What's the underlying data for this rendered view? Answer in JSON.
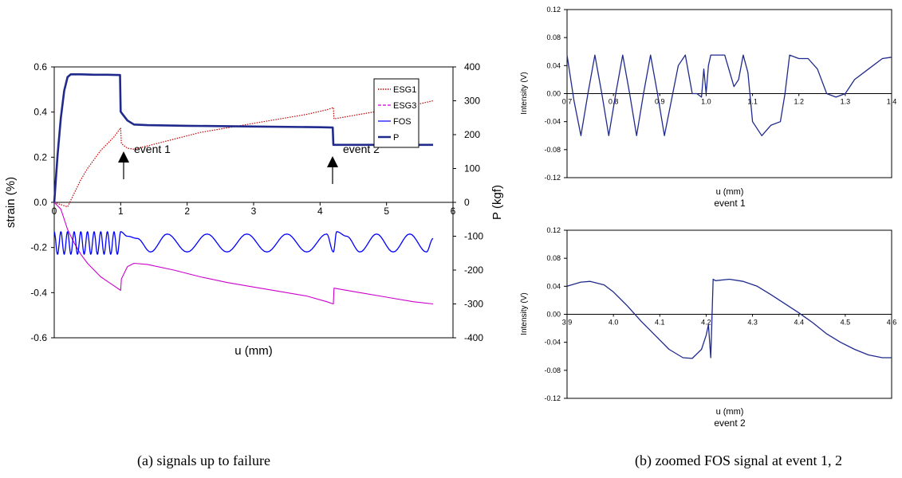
{
  "figure": {
    "caption_a": "(a) signals up to failure",
    "caption_b": "(b) zoomed FOS signal at event 1, 2"
  },
  "colors": {
    "esg1": "#c00000",
    "esg3": "#cc00cc",
    "fos": "#0000ff",
    "p": "#1f2a8c",
    "zoom_line": "#1f2a8c"
  },
  "chart_data": [
    {
      "id": "main",
      "type": "line",
      "xlabel": "u (mm)",
      "ylabel": "strain (%)",
      "y2label": "P (kgf)",
      "xlim": [
        0,
        6
      ],
      "ylim": [
        -0.6,
        0.6
      ],
      "y2lim": [
        -400,
        400
      ],
      "xticks": [
        "0",
        "1",
        "2",
        "3",
        "4",
        "5",
        "6"
      ],
      "yticks": [
        "-0.6",
        "-0.4",
        "-0.2",
        "0.0",
        "0.2",
        "0.4",
        "0.6"
      ],
      "y2ticks": [
        "-400",
        "-300",
        "-200",
        "-100",
        "0",
        "100",
        "200",
        "300",
        "400"
      ],
      "grid": false,
      "legend_position": "top-right",
      "series": [
        {
          "name": "ESG1",
          "axis": "left",
          "style": "dotted",
          "x": [
            0,
            0.1,
            0.2,
            0.3,
            0.4,
            0.5,
            0.6,
            0.7,
            0.8,
            0.9,
            1.0,
            1.01,
            1.1,
            1.2,
            1.4,
            1.8,
            2.2,
            2.6,
            3.0,
            3.4,
            3.8,
            4.1,
            4.2,
            4.21,
            4.6,
            5.0,
            5.4,
            5.7
          ],
          "y": [
            0,
            -0.01,
            -0.02,
            0.04,
            0.1,
            0.15,
            0.19,
            0.23,
            0.26,
            0.29,
            0.33,
            0.26,
            0.24,
            0.235,
            0.25,
            0.28,
            0.31,
            0.33,
            0.35,
            0.37,
            0.39,
            0.41,
            0.42,
            0.37,
            0.39,
            0.41,
            0.43,
            0.45
          ]
        },
        {
          "name": "ESG3",
          "axis": "left",
          "style": "dashed",
          "x": [
            0,
            0.1,
            0.2,
            0.3,
            0.4,
            0.5,
            0.6,
            0.7,
            0.8,
            0.9,
            1.0,
            1.01,
            1.1,
            1.2,
            1.4,
            1.8,
            2.2,
            2.6,
            3.0,
            3.4,
            3.8,
            4.1,
            4.2,
            4.21,
            4.6,
            5.0,
            5.4,
            5.7
          ],
          "y": [
            0,
            -0.03,
            -0.12,
            -0.18,
            -0.23,
            -0.27,
            -0.3,
            -0.33,
            -0.35,
            -0.37,
            -0.39,
            -0.34,
            -0.285,
            -0.27,
            -0.275,
            -0.3,
            -0.33,
            -0.355,
            -0.375,
            -0.395,
            -0.415,
            -0.44,
            -0.45,
            -0.38,
            -0.4,
            -0.42,
            -0.44,
            -0.45
          ]
        },
        {
          "name": "FOS",
          "axis": "left",
          "style": "solid",
          "description": "oscillating intensity signal, amplitude ~ ±0.05 around -0.18",
          "x": [
            0.0,
            0.05,
            0.1,
            0.15,
            0.2,
            0.25,
            0.3,
            0.35,
            0.4,
            0.45,
            0.5,
            0.55,
            0.6,
            0.65,
            0.7,
            0.75,
            0.8,
            0.85,
            0.9,
            0.95,
            1.0,
            1.1,
            1.25,
            1.45,
            1.7,
            2.0,
            2.3,
            2.6,
            2.9,
            3.2,
            3.5,
            3.8,
            4.1,
            4.2,
            4.25,
            4.4,
            4.6,
            4.85,
            5.1,
            5.35,
            5.6,
            5.7
          ],
          "y": [
            -0.13,
            -0.23,
            -0.13,
            -0.23,
            -0.13,
            -0.23,
            -0.13,
            -0.23,
            -0.13,
            -0.23,
            -0.13,
            -0.23,
            -0.13,
            -0.23,
            -0.13,
            -0.23,
            -0.13,
            -0.23,
            -0.13,
            -0.23,
            -0.13,
            -0.15,
            -0.16,
            -0.22,
            -0.14,
            -0.22,
            -0.14,
            -0.22,
            -0.14,
            -0.22,
            -0.14,
            -0.22,
            -0.14,
            -0.22,
            -0.13,
            -0.15,
            -0.22,
            -0.14,
            -0.22,
            -0.14,
            -0.22,
            -0.16
          ]
        },
        {
          "name": "P",
          "axis": "right",
          "style": "solid-bold",
          "x": [
            0,
            0.05,
            0.1,
            0.15,
            0.2,
            0.25,
            0.3,
            0.4,
            0.6,
            0.8,
            0.99,
            1.0,
            1.01,
            1.1,
            1.2,
            1.4,
            2.0,
            3.0,
            4.0,
            4.19,
            4.2,
            4.21,
            4.5,
            5.0,
            5.5,
            5.7
          ],
          "y": [
            0,
            140,
            250,
            330,
            370,
            378,
            378,
            378,
            377,
            377,
            376,
            268,
            265,
            242,
            230,
            228,
            226,
            224,
            222,
            221,
            170,
            170,
            170,
            170,
            170,
            170
          ]
        }
      ],
      "annotations": [
        {
          "label": "event 1",
          "x": 1.05,
          "y": 0.23
        },
        {
          "label": "event 2",
          "x": 4.2,
          "y": 0.23
        }
      ]
    },
    {
      "id": "zoom1",
      "type": "line",
      "title": "event 1",
      "xlabel": "u (mm)",
      "ylabel": "Intensity (V)",
      "xlim": [
        0.7,
        1.4
      ],
      "ylim": [
        -0.12,
        0.12
      ],
      "xticks": [
        "0.7",
        "0.8",
        "0.9",
        "1.0",
        "1.1",
        "1.2",
        "1.3",
        "1.4"
      ],
      "yticks": [
        "-0.12",
        "-0.08",
        "-0.04",
        "0.00",
        "0.04",
        "0.08",
        "0.12"
      ],
      "grid": false,
      "series": [
        {
          "name": "",
          "x": [
            0.7,
            0.715,
            0.73,
            0.745,
            0.76,
            0.775,
            0.79,
            0.805,
            0.82,
            0.835,
            0.85,
            0.865,
            0.88,
            0.895,
            0.91,
            0.925,
            0.94,
            0.955,
            0.97,
            0.98,
            0.99,
            0.995,
            1.0,
            1.005,
            1.01,
            1.02,
            1.04,
            1.06,
            1.07,
            1.08,
            1.09,
            1.1,
            1.12,
            1.14,
            1.16,
            1.17,
            1.18,
            1.2,
            1.22,
            1.24,
            1.26,
            1.28,
            1.3,
            1.32,
            1.35,
            1.38,
            1.4
          ],
          "y": [
            0.055,
            -0.01,
            -0.06,
            0.0,
            0.055,
            0.0,
            -0.06,
            0.0,
            0.055,
            0.0,
            -0.06,
            0.0,
            0.055,
            0.0,
            -0.06,
            -0.01,
            0.04,
            0.055,
            0.0,
            0.0,
            -0.005,
            0.035,
            0.0,
            0.04,
            0.055,
            0.055,
            0.055,
            0.01,
            0.02,
            0.055,
            0.03,
            -0.04,
            -0.06,
            -0.045,
            -0.04,
            0.0,
            0.055,
            0.05,
            0.05,
            0.035,
            0.0,
            -0.005,
            0.0,
            0.02,
            0.035,
            0.05,
            0.052
          ]
        }
      ]
    },
    {
      "id": "zoom2",
      "type": "line",
      "title": "event 2",
      "xlabel": "u (mm)",
      "ylabel": "Intensity (V)",
      "xlim": [
        3.9,
        4.6
      ],
      "ylim": [
        -0.12,
        0.12
      ],
      "xticks": [
        "3.9",
        "4.0",
        "4.1",
        "4.2",
        "4.3",
        "4.4",
        "4.5",
        "4.6"
      ],
      "yticks": [
        "-0.12",
        "-0.08",
        "-0.04",
        "0.00",
        "0.04",
        "0.08",
        "0.12"
      ],
      "grid": false,
      "series": [
        {
          "name": "",
          "x": [
            3.9,
            3.93,
            3.95,
            3.98,
            4.0,
            4.03,
            4.06,
            4.09,
            4.12,
            4.15,
            4.17,
            4.19,
            4.2,
            4.205,
            4.21,
            4.215,
            4.22,
            4.25,
            4.28,
            4.31,
            4.34,
            4.37,
            4.4,
            4.43,
            4.46,
            4.49,
            4.52,
            4.55,
            4.58,
            4.6
          ],
          "y": [
            0.04,
            0.046,
            0.047,
            0.042,
            0.032,
            0.012,
            -0.01,
            -0.03,
            -0.05,
            -0.062,
            -0.063,
            -0.05,
            -0.03,
            -0.015,
            -0.062,
            0.05,
            0.048,
            0.05,
            0.047,
            0.04,
            0.028,
            0.015,
            0.002,
            -0.012,
            -0.028,
            -0.04,
            -0.05,
            -0.058,
            -0.062,
            -0.062
          ]
        }
      ]
    }
  ]
}
